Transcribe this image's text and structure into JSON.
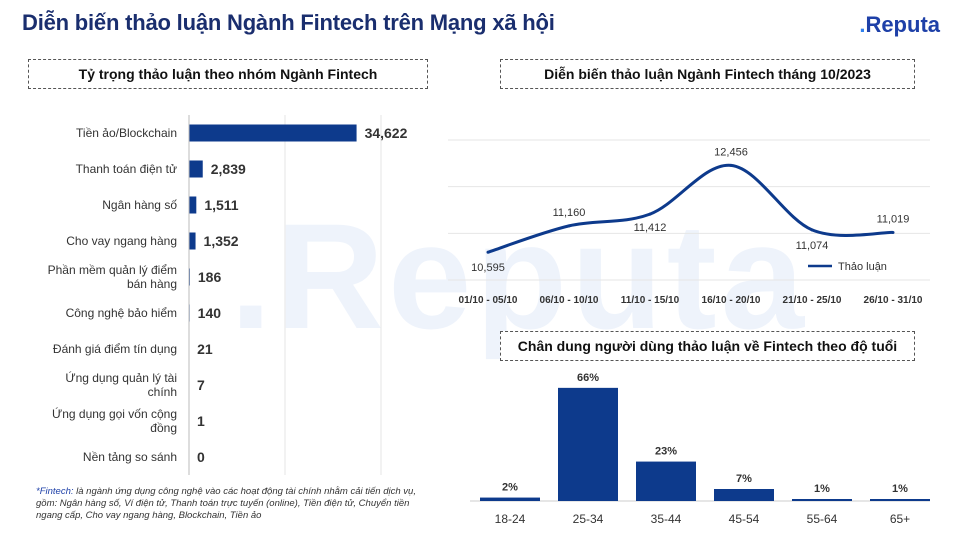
{
  "header": {
    "title": "Diễn biến thảo luận Ngành Fintech trên Mạng xã hội",
    "logo_dot": ".",
    "logo_text": "Reputa"
  },
  "watermark": ".Reputa",
  "colors": {
    "bar": "#0d3a8c",
    "grid": "#e6e6e6",
    "title": "#1a2e6e"
  },
  "footnote": {
    "term": "*Fintech:",
    "text": " là ngành ứng dụng công nghệ vào các hoạt động tài chính nhằm cải tiến dịch vụ, gồm: Ngân hàng số, Ví điện tử, Thanh toán trực tuyến (online), Tiền điện tử, Chuyển tiền ngang cấp, Cho vay ngang hàng, Blockchain, Tiền ảo"
  },
  "chart_data": [
    {
      "type": "bar",
      "orientation": "horizontal",
      "title": "Tỷ trọng thảo luận theo nhóm Ngành Fintech",
      "categories": [
        [
          "Tiền ảo/Blockchain"
        ],
        [
          "Thanh toán điện tử"
        ],
        [
          "Ngân hàng số"
        ],
        [
          "Cho vay ngang hàng"
        ],
        [
          "Phần mềm quản lý điểm",
          "bán hàng"
        ],
        [
          "Công nghệ bảo hiểm"
        ],
        [
          "Đánh giá điểm tín dụng"
        ],
        [
          "Ứng dụng quản lý tài",
          "chính"
        ],
        [
          "Ứng dụng gọi vốn cộng",
          "đồng"
        ],
        [
          "Nền tảng so sánh"
        ]
      ],
      "values": [
        34622,
        2839,
        1511,
        1352,
        186,
        140,
        21,
        7,
        1,
        0
      ],
      "labels": [
        "34,622",
        "2,839",
        "1,511",
        "1,352",
        "186",
        "140",
        "21",
        "7",
        "1",
        "0"
      ],
      "xlim": [
        0,
        100000
      ],
      "grid": true
    },
    {
      "type": "line",
      "title": "Diễn biến thảo luận Ngành Fintech tháng 10/2023",
      "categories": [
        "01/10 - 05/10",
        "06/10 - 10/10",
        "11/10 - 15/10",
        "16/10 - 20/10",
        "21/10 - 25/10",
        "26/10 - 31/10"
      ],
      "series": [
        {
          "name": "Thảo luận",
          "values": [
            10595,
            11160,
            11412,
            12456,
            11074,
            11019
          ],
          "labels": [
            "10,595",
            "11,160",
            "11,412",
            "12,456",
            "11,074",
            "11,019"
          ]
        }
      ],
      "ylim": [
        10000,
        13000
      ],
      "grid": true,
      "legend": "bottom-right"
    },
    {
      "type": "bar",
      "title": "Chân dung người dùng thảo luận về Fintech theo độ tuổi",
      "categories": [
        "18-24",
        "25-34",
        "35-44",
        "45-54",
        "55-64",
        "65+"
      ],
      "values": [
        2,
        66,
        23,
        7,
        1,
        1
      ],
      "labels": [
        "2%",
        "66%",
        "23%",
        "7%",
        "1%",
        "1%"
      ],
      "ylim": [
        0,
        70
      ]
    }
  ]
}
